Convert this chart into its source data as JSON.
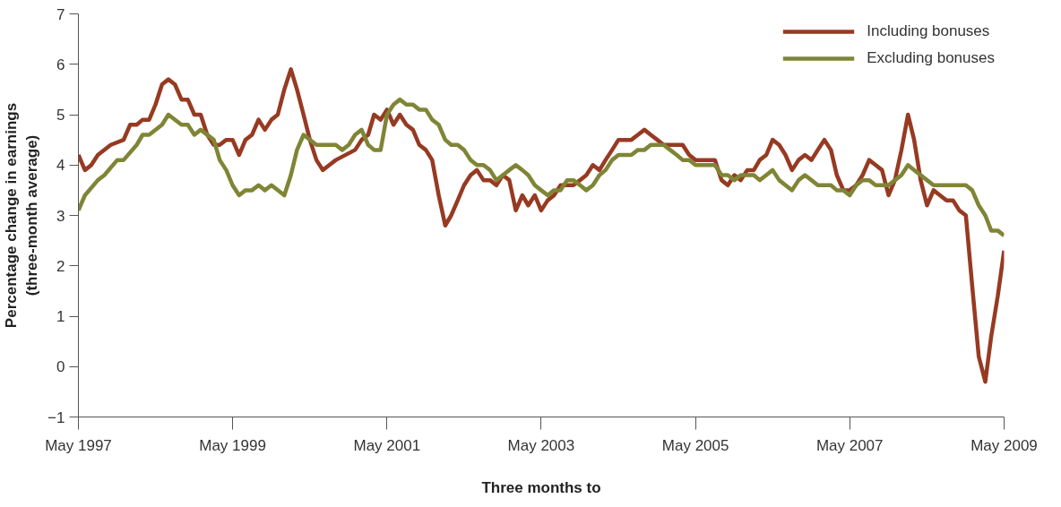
{
  "chart_data": {
    "type": "line",
    "xlabel": "Three months to",
    "ylabel": "Percentage change in earnings\n(three-month average)",
    "xlim": [
      "1997-05",
      "2009-05"
    ],
    "xticks": [
      {
        "value": "1997-05",
        "label": "May 1997"
      },
      {
        "value": "1999-05",
        "label": "May 1999"
      },
      {
        "value": "2001-05",
        "label": "May 2001"
      },
      {
        "value": "2003-05",
        "label": "May 2003"
      },
      {
        "value": "2005-05",
        "label": "May 2005"
      },
      {
        "value": "2007-05",
        "label": "May 2007"
      },
      {
        "value": "2009-05",
        "label": "May 2009"
      }
    ],
    "ylim": [
      -1,
      7
    ],
    "yticks": [
      {
        "value": -1,
        "label": "−1"
      },
      0,
      1,
      2,
      3,
      4,
      5,
      6,
      7
    ],
    "grid": false,
    "legend": "top right",
    "marker": "none",
    "line_style": "solid",
    "series": [
      {
        "name": "Including bonuses",
        "color": "#973a22",
        "x": [
          "1997-05",
          "1997-06",
          "1997-07",
          "1997-08",
          "1997-10",
          "1997-12",
          "1998-01",
          "1998-02",
          "1998-03",
          "1998-04",
          "1998-05",
          "1998-06",
          "1998-07",
          "1998-08",
          "1998-09",
          "1998-10",
          "1998-11",
          "1998-12",
          "1999-01",
          "1999-02",
          "1999-03",
          "1999-04",
          "1999-05",
          "1999-06",
          "1999-07",
          "1999-08",
          "1999-09",
          "1999-10",
          "1999-11",
          "1999-12",
          "2000-01",
          "2000-02",
          "2000-03",
          "2000-04",
          "2000-05",
          "2000-06",
          "2000-07",
          "2000-08",
          "2000-09",
          "2000-12",
          "2001-01",
          "2001-02",
          "2001-03",
          "2001-04",
          "2001-05",
          "2001-06",
          "2001-07",
          "2001-08",
          "2001-09",
          "2001-10",
          "2001-11",
          "2001-12",
          "2002-01",
          "2002-02",
          "2002-03",
          "2002-04",
          "2002-05",
          "2002-06",
          "2002-07",
          "2002-08",
          "2002-09",
          "2002-10",
          "2002-11",
          "2002-12",
          "2003-01",
          "2003-02",
          "2003-03",
          "2003-04",
          "2003-05",
          "2003-06",
          "2003-07",
          "2003-08",
          "2003-09",
          "2003-10",
          "2003-11",
          "2003-12",
          "2004-01",
          "2004-02",
          "2004-03",
          "2004-04",
          "2004-05",
          "2004-06",
          "2004-07",
          "2004-08",
          "2004-09",
          "2004-10",
          "2004-11",
          "2004-12",
          "2005-01",
          "2005-02",
          "2005-03",
          "2005-04",
          "2005-05",
          "2005-06",
          "2005-07",
          "2005-08",
          "2005-09",
          "2005-10",
          "2005-11",
          "2005-12",
          "2006-01",
          "2006-02",
          "2006-03",
          "2006-04",
          "2006-05",
          "2006-06",
          "2006-07",
          "2006-08",
          "2006-09",
          "2006-10",
          "2006-11",
          "2006-12",
          "2007-01",
          "2007-02",
          "2007-03",
          "2007-04",
          "2007-05",
          "2007-06",
          "2007-07",
          "2007-08",
          "2007-09",
          "2007-10",
          "2007-11",
          "2007-12",
          "2008-01",
          "2008-02",
          "2008-03",
          "2008-04",
          "2008-05",
          "2008-06",
          "2008-07",
          "2008-08",
          "2008-09",
          "2008-10",
          "2008-11",
          "2008-12",
          "2009-01",
          "2009-02",
          "2009-03",
          "2009-04",
          "2009-05"
        ],
        "values": [
          4.2,
          3.9,
          4.0,
          4.2,
          4.4,
          4.5,
          4.8,
          4.8,
          4.9,
          4.9,
          5.2,
          5.6,
          5.7,
          5.6,
          5.3,
          5.3,
          5.0,
          5.0,
          4.6,
          4.4,
          4.4,
          4.5,
          4.5,
          4.2,
          4.5,
          4.6,
          4.9,
          4.7,
          4.9,
          5.0,
          5.5,
          5.9,
          5.5,
          5.0,
          4.5,
          4.1,
          3.9,
          4.0,
          4.1,
          4.3,
          4.5,
          4.6,
          5.0,
          4.9,
          5.1,
          4.8,
          5.0,
          4.8,
          4.7,
          4.4,
          4.3,
          4.1,
          3.4,
          2.8,
          3.0,
          3.3,
          3.6,
          3.8,
          3.9,
          3.7,
          3.7,
          3.6,
          3.8,
          3.7,
          3.1,
          3.4,
          3.2,
          3.4,
          3.1,
          3.3,
          3.4,
          3.6,
          3.6,
          3.6,
          3.7,
          3.8,
          4.0,
          3.9,
          4.1,
          4.3,
          4.5,
          4.5,
          4.5,
          4.6,
          4.7,
          4.6,
          4.5,
          4.4,
          4.4,
          4.4,
          4.4,
          4.2,
          4.1,
          4.1,
          4.1,
          4.1,
          3.7,
          3.6,
          3.8,
          3.7,
          3.9,
          3.9,
          4.1,
          4.2,
          4.5,
          4.4,
          4.2,
          3.9,
          4.1,
          4.2,
          4.1,
          4.3,
          4.5,
          4.3,
          3.8,
          3.5,
          3.5,
          3.6,
          3.8,
          4.1,
          4.0,
          3.9,
          3.4,
          3.7,
          4.3,
          5.0,
          4.5,
          3.7,
          3.2,
          3.5,
          3.4,
          3.3,
          3.3,
          3.1,
          3.0,
          1.6,
          0.2,
          -0.3,
          0.6,
          1.4,
          2.3
        ]
      },
      {
        "name": "Excluding bonuses",
        "color": "#7f8535",
        "x": [
          "1997-05",
          "1997-06",
          "1997-08",
          "1997-09",
          "1997-11",
          "1997-12",
          "1998-02",
          "1998-03",
          "1998-04",
          "1998-06",
          "1998-07",
          "1998-09",
          "1998-10",
          "1998-11",
          "1998-12",
          "1999-02",
          "1999-03",
          "1999-04",
          "1999-05",
          "1999-06",
          "1999-07",
          "1999-08",
          "1999-09",
          "1999-10",
          "1999-11",
          "2000-01",
          "2000-02",
          "2000-03",
          "2000-04",
          "2000-06",
          "2000-09",
          "2000-10",
          "2000-11",
          "2000-12",
          "2001-01",
          "2001-02",
          "2001-03",
          "2001-04",
          "2001-05",
          "2001-06",
          "2001-07",
          "2001-08",
          "2001-09",
          "2001-10",
          "2001-11",
          "2001-12",
          "2002-01",
          "2002-02",
          "2002-03",
          "2002-04",
          "2002-05",
          "2002-06",
          "2002-07",
          "2002-08",
          "2002-09",
          "2002-10",
          "2002-11",
          "2002-12",
          "2003-01",
          "2003-02",
          "2003-03",
          "2003-04",
          "2003-05",
          "2003-06",
          "2003-07",
          "2003-08",
          "2003-09",
          "2003-10",
          "2003-11",
          "2003-12",
          "2004-01",
          "2004-02",
          "2004-03",
          "2004-04",
          "2004-05",
          "2004-06",
          "2004-07",
          "2004-08",
          "2004-09",
          "2004-10",
          "2004-11",
          "2004-12",
          "2005-01",
          "2005-02",
          "2005-03",
          "2005-04",
          "2005-05",
          "2005-06",
          "2005-07",
          "2005-08",
          "2005-09",
          "2005-10",
          "2005-11",
          "2005-12",
          "2006-02",
          "2006-03",
          "2006-04",
          "2006-05",
          "2006-06",
          "2006-07",
          "2006-08",
          "2006-09",
          "2006-10",
          "2006-11",
          "2006-12",
          "2007-02",
          "2007-03",
          "2007-04",
          "2007-05",
          "2007-06",
          "2007-07",
          "2007-08",
          "2007-09",
          "2007-11",
          "2007-12",
          "2008-01",
          "2008-02",
          "2008-03",
          "2008-04",
          "2008-05",
          "2008-06",
          "2008-10",
          "2008-11",
          "2008-12",
          "2009-01",
          "2009-02",
          "2009-03",
          "2009-04",
          "2009-05"
        ],
        "values": [
          3.1,
          3.4,
          3.7,
          3.8,
          4.1,
          4.1,
          4.4,
          4.6,
          4.6,
          4.8,
          5.0,
          4.8,
          4.8,
          4.6,
          4.7,
          4.5,
          4.1,
          3.9,
          3.6,
          3.4,
          3.5,
          3.5,
          3.6,
          3.5,
          3.6,
          3.4,
          3.8,
          4.3,
          4.6,
          4.4,
          4.4,
          4.3,
          4.4,
          4.6,
          4.7,
          4.4,
          4.3,
          4.3,
          5.0,
          5.2,
          5.3,
          5.2,
          5.2,
          5.1,
          5.1,
          4.9,
          4.8,
          4.5,
          4.4,
          4.4,
          4.3,
          4.1,
          4.0,
          4.0,
          3.9,
          3.7,
          3.8,
          3.9,
          4.0,
          3.9,
          3.8,
          3.6,
          3.5,
          3.4,
          3.5,
          3.5,
          3.7,
          3.7,
          3.6,
          3.5,
          3.6,
          3.8,
          3.9,
          4.1,
          4.2,
          4.2,
          4.2,
          4.3,
          4.3,
          4.4,
          4.4,
          4.4,
          4.3,
          4.2,
          4.1,
          4.1,
          4.0,
          4.0,
          4.0,
          4.0,
          3.8,
          3.8,
          3.7,
          3.8,
          3.8,
          3.7,
          3.8,
          3.9,
          3.7,
          3.6,
          3.5,
          3.7,
          3.8,
          3.7,
          3.6,
          3.6,
          3.5,
          3.5,
          3.4,
          3.6,
          3.7,
          3.7,
          3.6,
          3.6,
          3.7,
          3.8,
          4.0,
          3.9,
          3.8,
          3.7,
          3.6,
          3.6,
          3.6,
          3.5,
          3.2,
          3.0,
          2.7,
          2.7,
          2.6
        ]
      }
    ]
  }
}
